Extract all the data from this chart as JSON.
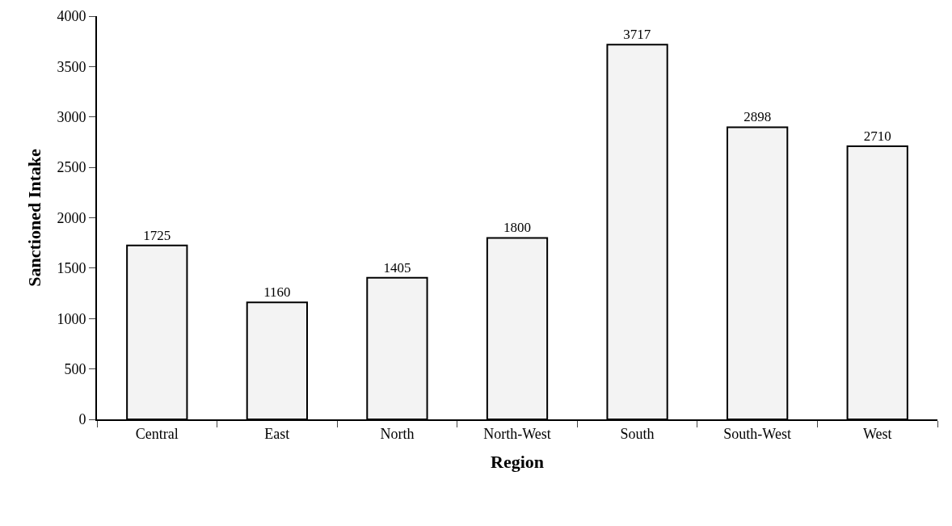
{
  "chart_data": {
    "type": "bar",
    "xlabel": "Region",
    "ylabel": "Sanctioned Intake",
    "categories": [
      "Central",
      "East",
      "North",
      "North-West",
      "South",
      "South-West",
      "West"
    ],
    "values": [
      1725,
      1160,
      1405,
      1800,
      3717,
      2898,
      2710
    ],
    "color": "#f3f3f3",
    "data_labels": true,
    "grid": false,
    "legend": false,
    "ylim": [
      0,
      4000
    ],
    "yticks": [
      0,
      500,
      1000,
      1500,
      2000,
      2500,
      3000,
      3500,
      4000
    ]
  }
}
